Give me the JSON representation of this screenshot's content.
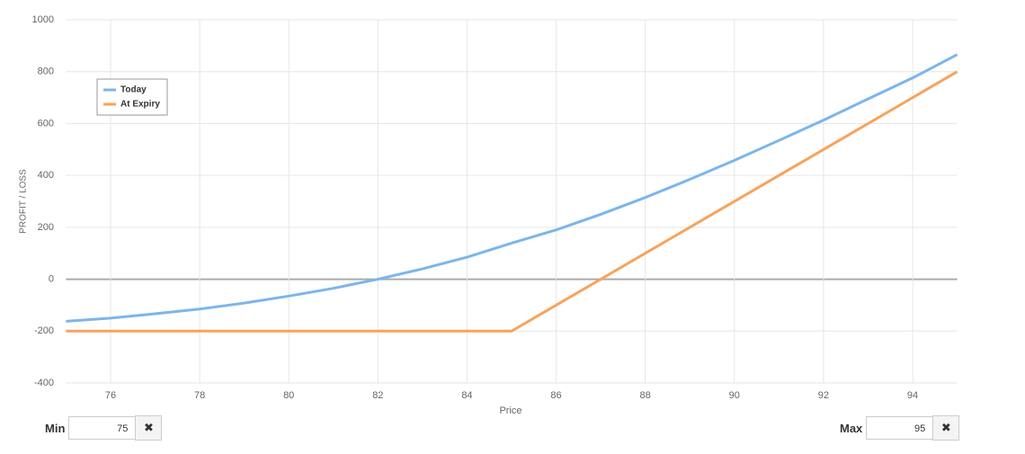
{
  "chart_data": {
    "type": "line",
    "xlabel": "Price",
    "ylabel": "PROFIT / LOSS",
    "xlim": [
      75,
      95
    ],
    "xticks": [
      76,
      78,
      80,
      82,
      84,
      86,
      88,
      90,
      92,
      94
    ],
    "ylim": [
      -400,
      1000
    ],
    "yticks": [
      -400,
      -200,
      0,
      200,
      400,
      600,
      800,
      1000
    ],
    "grid": true,
    "legend": "upper left",
    "series": [
      {
        "name": "Today",
        "color": "#7cb5ec",
        "x": [
          75,
          76,
          77,
          78,
          79,
          80,
          81,
          82,
          83,
          84,
          85,
          86,
          87,
          88,
          89,
          90,
          91,
          92,
          93,
          94,
          95
        ],
        "values": [
          -162,
          -150,
          -133,
          -115,
          -92,
          -65,
          -35,
          0,
          40,
          85,
          139,
          190,
          250,
          315,
          385,
          458,
          535,
          613,
          695,
          776,
          866
        ]
      },
      {
        "name": "At Expiry",
        "color": "#f7a35c",
        "x": [
          75,
          85,
          95
        ],
        "values": [
          -200,
          -200,
          800
        ]
      }
    ]
  },
  "controls": {
    "min_label": "Min",
    "min_value": 75,
    "max_label": "Max",
    "max_value": 95
  }
}
